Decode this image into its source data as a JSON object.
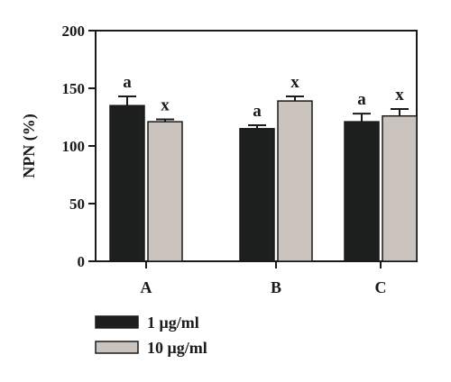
{
  "chart_data": {
    "type": "bar",
    "ylabel": "NPN (%)",
    "xlabel": "",
    "ylim": [
      0,
      200
    ],
    "yticks": [
      0,
      50,
      100,
      150,
      200
    ],
    "ytick_labels": [
      "0",
      "50",
      "100",
      "150",
      "200"
    ],
    "categories": [
      "A",
      "B",
      "C"
    ],
    "grid": false,
    "legend_position": "bottom-left",
    "series": [
      {
        "name": "1 μg/ml",
        "color": "#1c1f1d",
        "values": [
          135,
          115,
          121
        ],
        "errors": [
          8,
          3,
          7
        ],
        "significance": [
          "a",
          "a",
          "a"
        ]
      },
      {
        "name": "10 μg/ml",
        "color": "#cbc3be",
        "values": [
          121,
          139,
          126
        ],
        "errors": [
          2,
          4,
          6
        ],
        "significance": [
          "x",
          "x",
          "x"
        ]
      }
    ]
  }
}
